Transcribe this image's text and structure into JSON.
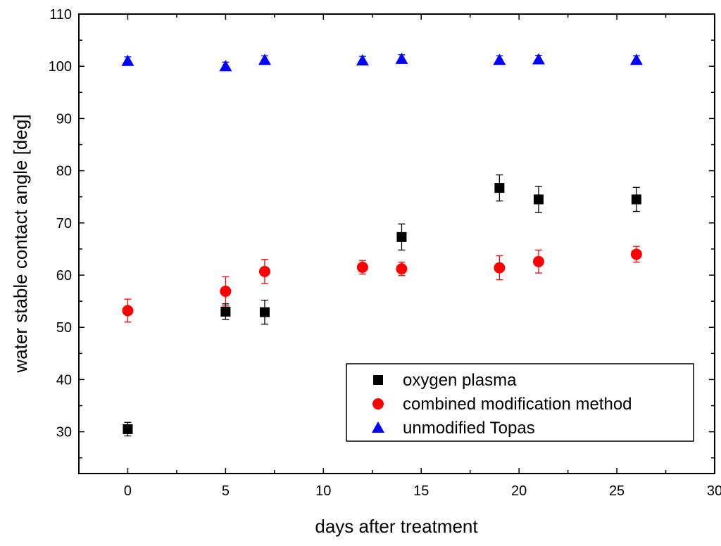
{
  "chart_data": {
    "type": "scatter",
    "title": "",
    "xlabel": "days after treatment",
    "ylabel": "water stable contact angle [deg]",
    "xlim": [
      -2.5,
      30
    ],
    "ylim": [
      22,
      110
    ],
    "xticks": [
      0,
      5,
      10,
      15,
      20,
      25,
      30
    ],
    "yticks": [
      30,
      40,
      50,
      60,
      70,
      80,
      90,
      100,
      110
    ],
    "grid": false,
    "legend_position": "bottom-right",
    "series": [
      {
        "name": "oxygen plasma",
        "marker": "square",
        "color": "#000000",
        "x": [
          0,
          5,
          7,
          14,
          19,
          21,
          26
        ],
        "y": [
          30.5,
          53.0,
          52.9,
          67.3,
          76.7,
          74.5,
          74.5
        ],
        "err": [
          1.3,
          1.5,
          2.3,
          2.5,
          2.5,
          2.5,
          2.3
        ]
      },
      {
        "name": "combined modification method",
        "marker": "circle",
        "color": "#ff0000",
        "x": [
          0,
          5,
          7,
          12,
          14,
          19,
          21,
          26
        ],
        "y": [
          53.2,
          56.9,
          60.7,
          61.5,
          61.2,
          61.4,
          62.6,
          64.0
        ],
        "err": [
          2.2,
          2.8,
          2.3,
          1.3,
          1.3,
          2.3,
          2.2,
          1.5
        ]
      },
      {
        "name": "unmodified Topas",
        "marker": "triangle",
        "color": "#0000ff",
        "x": [
          0,
          5,
          7,
          12,
          14,
          19,
          21,
          26
        ],
        "y": [
          101.0,
          100.0,
          101.2,
          101.1,
          101.4,
          101.2,
          101.3,
          101.2
        ],
        "err": [
          0.8,
          0.8,
          0.8,
          0.8,
          0.8,
          0.8,
          0.8,
          0.8
        ]
      }
    ]
  }
}
